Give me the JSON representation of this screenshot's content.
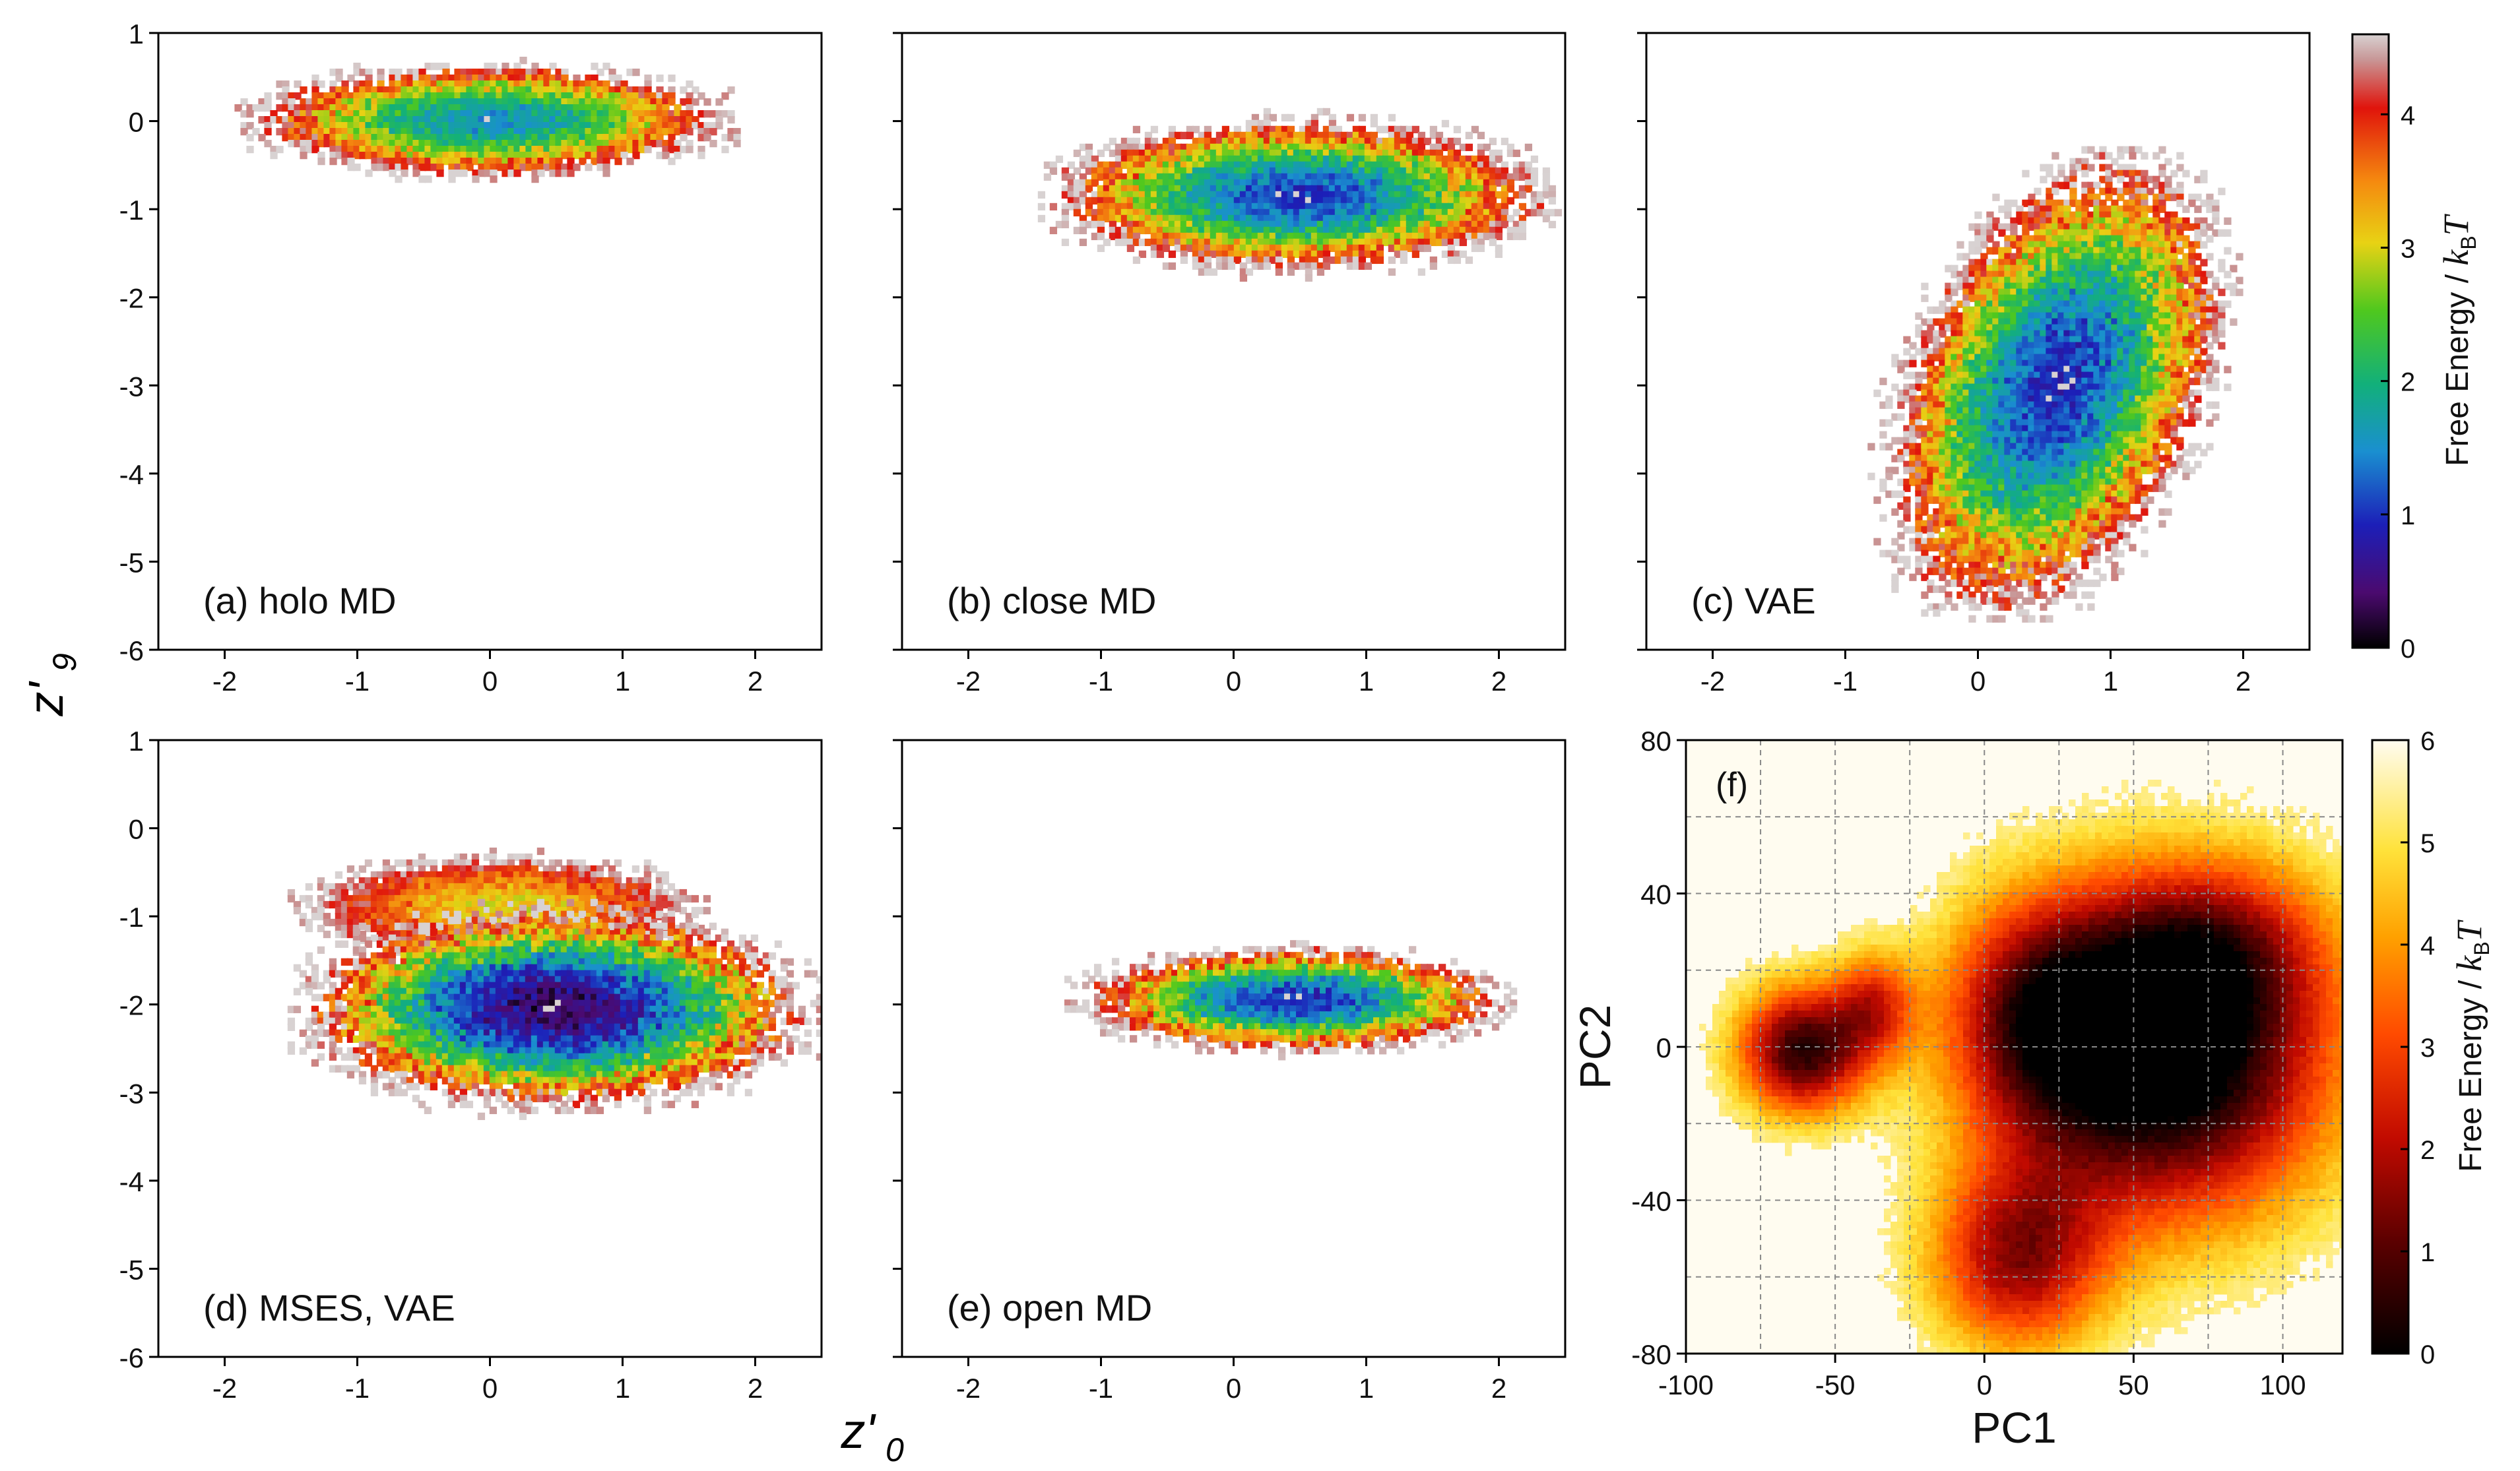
{
  "figure": {
    "ylabel_main": "z'",
    "ylabel_sub": "9",
    "xlabel_main": "z'",
    "xlabel_sub": "0"
  },
  "chart_data": [
    {
      "id": "a",
      "type": "contour",
      "label": "(a) holo MD",
      "xlim": [
        -2.5,
        2.5
      ],
      "ylim": [
        -6,
        1
      ],
      "xticks": [
        -2,
        -1,
        0,
        1,
        2
      ],
      "yticks": [
        1,
        0,
        -1,
        -2,
        -3,
        -4,
        -5,
        -6
      ],
      "show_x_ticklabels": true,
      "show_y_ticklabels": true,
      "blob": {
        "cx": 0.0,
        "cy": 0.0,
        "rx": 1.7,
        "ry": 0.6,
        "min_free_energy": 1.5,
        "tilt": 0
      }
    },
    {
      "id": "b",
      "type": "contour",
      "label": "(b) close MD",
      "xlim": [
        -2.5,
        2.5
      ],
      "ylim": [
        -6,
        1
      ],
      "xticks": [
        -2,
        -1,
        0,
        1,
        2
      ],
      "yticks": [
        1,
        0,
        -1,
        -2,
        -3,
        -4,
        -5,
        -6
      ],
      "show_x_ticklabels": true,
      "show_y_ticklabels": false,
      "blob": {
        "cx": 0.5,
        "cy": -0.85,
        "rx": 1.75,
        "ry": 0.8,
        "min_free_energy": 1.0,
        "tilt": 0
      }
    },
    {
      "id": "c",
      "type": "contour",
      "label": "(c) VAE",
      "xlim": [
        -2.5,
        2.5
      ],
      "ylim": [
        -6,
        1
      ],
      "xticks": [
        -2,
        -1,
        0,
        1,
        2
      ],
      "yticks": [
        1,
        0,
        -1,
        -2,
        -3,
        -4,
        -5,
        -6
      ],
      "show_x_ticklabels": true,
      "show_y_ticklabels": false,
      "blob": {
        "cx": 0.6,
        "cy": -3.0,
        "rx": 1.1,
        "ry": 2.45,
        "min_free_energy": 0.9,
        "tilt": 0.45
      }
    },
    {
      "id": "d",
      "type": "contour",
      "label": "(d) MSES, VAE",
      "xlim": [
        -2.5,
        2.5
      ],
      "ylim": [
        -6,
        1
      ],
      "xticks": [
        -2,
        -1,
        0,
        1,
        2
      ],
      "yticks": [
        1,
        0,
        -1,
        -2,
        -3,
        -4,
        -5,
        -6
      ],
      "show_x_ticklabels": true,
      "show_y_ticklabels": true,
      "blob": {
        "cx": 0.5,
        "cy": -2.05,
        "rx": 1.8,
        "ry": 1.05,
        "min_free_energy": 0.3,
        "tilt": 0
      },
      "blob2": {
        "cx": 0.1,
        "cy": -0.9,
        "rx": 1.4,
        "ry": 0.55,
        "min_free_energy": 3.0,
        "tilt": 0
      }
    },
    {
      "id": "e",
      "type": "contour",
      "label": "(e) open MD",
      "xlim": [
        -2.5,
        2.5
      ],
      "ylim": [
        -6,
        1
      ],
      "xticks": [
        -2,
        -1,
        0,
        1,
        2
      ],
      "yticks": [
        1,
        0,
        -1,
        -2,
        -3,
        -4,
        -5,
        -6
      ],
      "show_x_ticklabels": true,
      "show_y_ticklabels": false,
      "blob": {
        "cx": 0.45,
        "cy": -1.95,
        "rx": 1.5,
        "ry": 0.55,
        "min_free_energy": 0.9,
        "tilt": 0
      }
    },
    {
      "id": "f",
      "type": "heatmap",
      "label": "(f)",
      "xlabel": "PC1",
      "ylabel": "PC2",
      "xlim": [
        -100,
        120
      ],
      "ylim": [
        -80,
        80
      ],
      "xticks": [
        -100,
        -50,
        0,
        50,
        100
      ],
      "yticks": [
        80,
        40,
        0,
        -40,
        -80
      ],
      "grid_x": [
        -75,
        -50,
        -25,
        0,
        25,
        50,
        75,
        100
      ],
      "grid_y": [
        60,
        40,
        20,
        0,
        -20,
        -40,
        -60
      ],
      "basins": [
        {
          "cx": -62,
          "cy": 0,
          "rx": 22,
          "ry": 17,
          "depth": 5.2
        },
        {
          "cx": -38,
          "cy": 12,
          "rx": 14,
          "ry": 14,
          "depth": 2.6
        },
        {
          "cx": 60,
          "cy": -2,
          "rx": 55,
          "ry": 42,
          "depth": 6.5
        },
        {
          "cx": 10,
          "cy": -55,
          "rx": 30,
          "ry": 25,
          "depth": 3.8
        },
        {
          "cx": 15,
          "cy": 10,
          "rx": 30,
          "ry": 30,
          "depth": 3.0
        },
        {
          "cx": 75,
          "cy": 28,
          "rx": 40,
          "ry": 22,
          "depth": 2.2
        }
      ]
    }
  ],
  "colorbars": {
    "contour": {
      "title_prefix": "Free Energy / ",
      "k": "k",
      "k_sub": "B",
      "T": "T",
      "ticks": [
        "0",
        "1",
        "2",
        "3",
        "4"
      ],
      "tick_values": [
        0,
        1,
        2,
        3,
        4
      ],
      "vmax": 4.6
    },
    "heatmap": {
      "title_prefix": "Free Energy / ",
      "k": "k",
      "k_sub": "B",
      "T": "T",
      "ticks": [
        "0",
        "1",
        "2",
        "3",
        "4",
        "5",
        "6"
      ],
      "tick_values": [
        0,
        1,
        2,
        3,
        4,
        5,
        6
      ],
      "vmax": 6
    }
  }
}
